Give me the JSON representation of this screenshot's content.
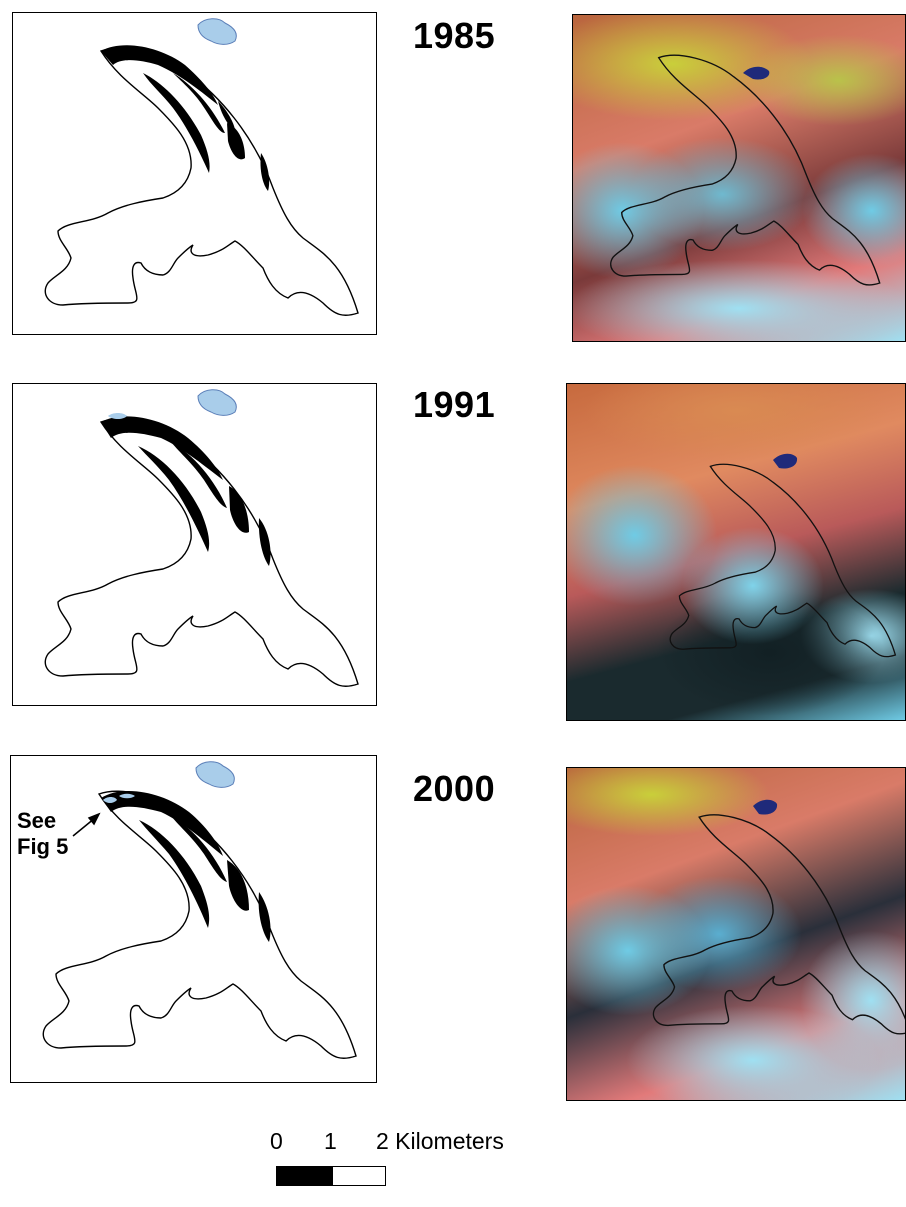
{
  "panels": [
    {
      "year": "1985",
      "note": null
    },
    {
      "year": "1991",
      "note": null
    },
    {
      "year": "2000",
      "note": {
        "line1": "See",
        "line2": "Fig 5"
      }
    }
  ],
  "scale_bar": {
    "ticks": [
      "0",
      "1",
      "2 Kilometers"
    ],
    "max_km": 2
  },
  "colors": {
    "debris_black": "#000000",
    "lake_fill": "#a9cdea",
    "lake_dark": "#1f2a7a",
    "snow_cyan": "#7dd3ec",
    "rock_pink": "#e27a7a",
    "vegetation_yellow": "#c9cf3a",
    "shadow_dark": "#1a2a2e"
  }
}
